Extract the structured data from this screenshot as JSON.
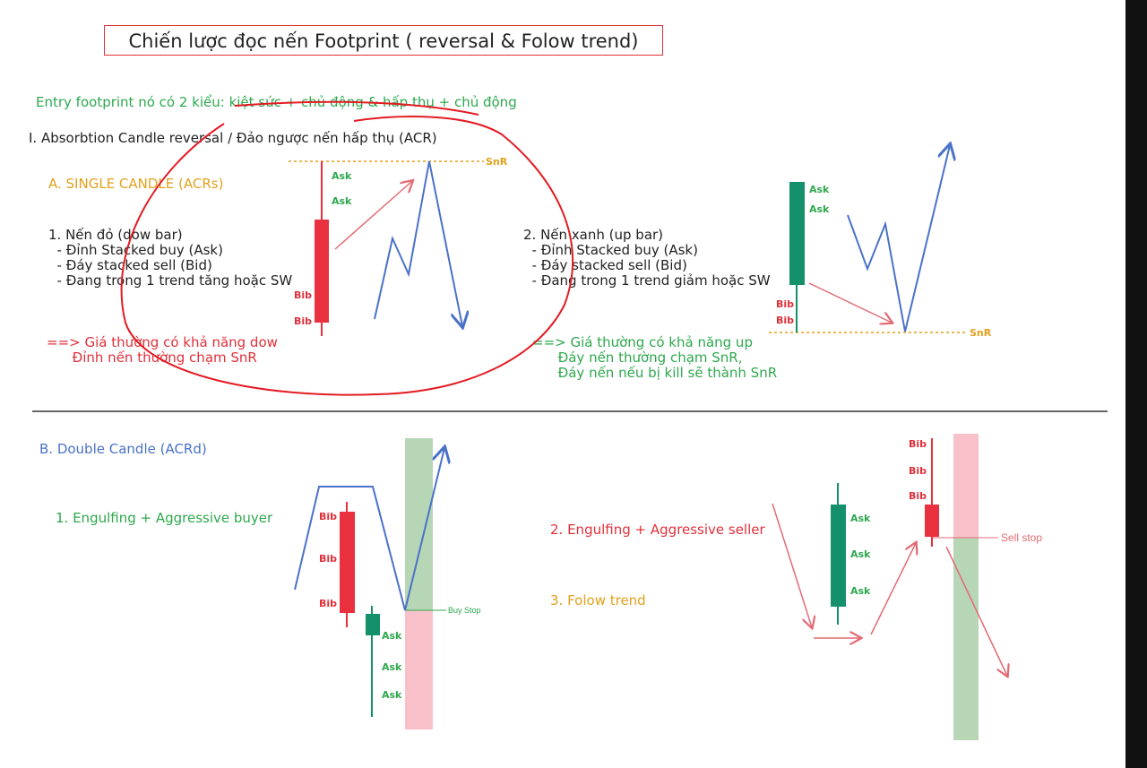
{
  "title": "Chiến lược đọc nến Footprint ( reversal & Folow trend)",
  "intro": "Entry footprint nó có 2 kiểu: kiệt sức + chủ động & hấp thụ + chủ động",
  "section1": {
    "heading": "I. Absorbtion Candle reversal / Đảo ngược nến hấp thụ (ACR)",
    "sub_a": "A. SINGLE CANDLE (ACRs)",
    "case1": {
      "lines": [
        "1. Nến đỏ (dow bar)",
        "  - Đỉnh Stacked buy (Ask)",
        "  - Đáy stacked sell (Bid)",
        "  - Đang trong 1 trend tăng hoặc SW"
      ],
      "conclusion": [
        "==> Giá thường có khả năng dow",
        "      Đỉnh nến thường chạm SnR"
      ]
    },
    "case2": {
      "lines": [
        "2. Nến xanh (up bar)",
        "  - Đỉnh Stacked buy (Ask)",
        "  - Đáy stacked sell (Bid)",
        "  - Đang trong 1 trend giảm hoặc SW"
      ],
      "conclusion": [
        "==> Giá thường có khả năng up",
        "      Đáy nến thường chạm SnR,",
        "      Đáy nến nếu bị kill sẽ thành SnR"
      ]
    }
  },
  "section2": {
    "sub_b": "B. Double Candle (ACRd)",
    "case1": "1. Engulfing + Aggressive buyer",
    "case2": "2. Engulfing + Aggressive seller",
    "case3": "3. Folow trend"
  },
  "labels": {
    "ask": "Ask",
    "bid": "Bib",
    "snr": "SnR",
    "buy_stop": "Buy Stop",
    "sell_stop": "Sell stop"
  },
  "colors": {
    "title_border": "#e0303a",
    "green_text": "#2ea84e",
    "orange_text": "#e2a11c",
    "blue_text": "#4a72c8",
    "red_text": "#e0303a",
    "bull_candle": "#14916b",
    "bear_candle": "#e8303e",
    "snr_line": "#e2a11c"
  }
}
